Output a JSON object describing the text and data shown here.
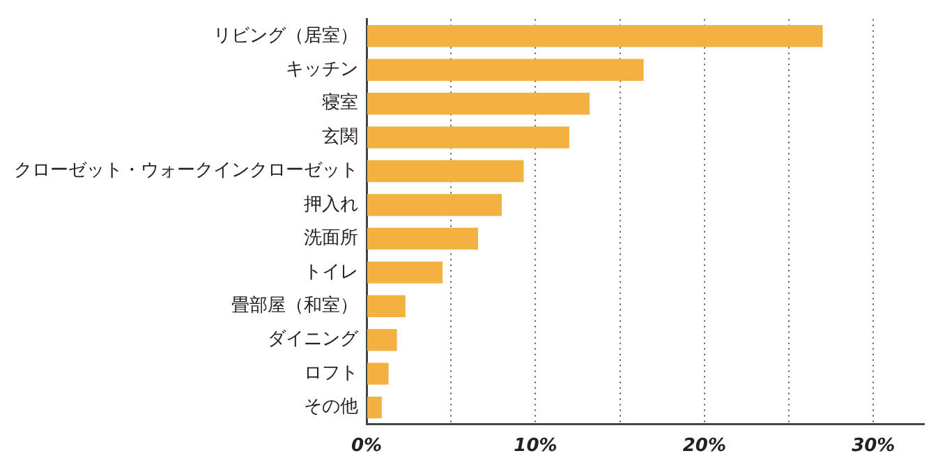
{
  "chart_data": {
    "type": "bar",
    "orientation": "horizontal",
    "categories": [
      "リビング（居室）",
      "キッチン",
      "寝室",
      "玄関",
      "クローゼット・ウォークインクローゼット",
      "押入れ",
      "洗面所",
      "トイレ",
      "畳部屋（和室）",
      "ダイニング",
      "ロフト",
      "その他"
    ],
    "values": [
      27.0,
      16.4,
      13.2,
      12.0,
      9.3,
      8.0,
      6.6,
      4.5,
      2.3,
      1.8,
      1.3,
      0.9
    ],
    "color": "#f2b140",
    "xlim": [
      0,
      33
    ],
    "xticks": [
      {
        "value": 0,
        "label": "0%"
      },
      {
        "value": 5,
        "label": null
      },
      {
        "value": 10,
        "label": "10%"
      },
      {
        "value": 15,
        "label": null
      },
      {
        "value": 20,
        "label": "20%"
      },
      {
        "value": 25,
        "label": null
      },
      {
        "value": 30,
        "label": "30%"
      }
    ],
    "grid": "x",
    "legend": false
  }
}
